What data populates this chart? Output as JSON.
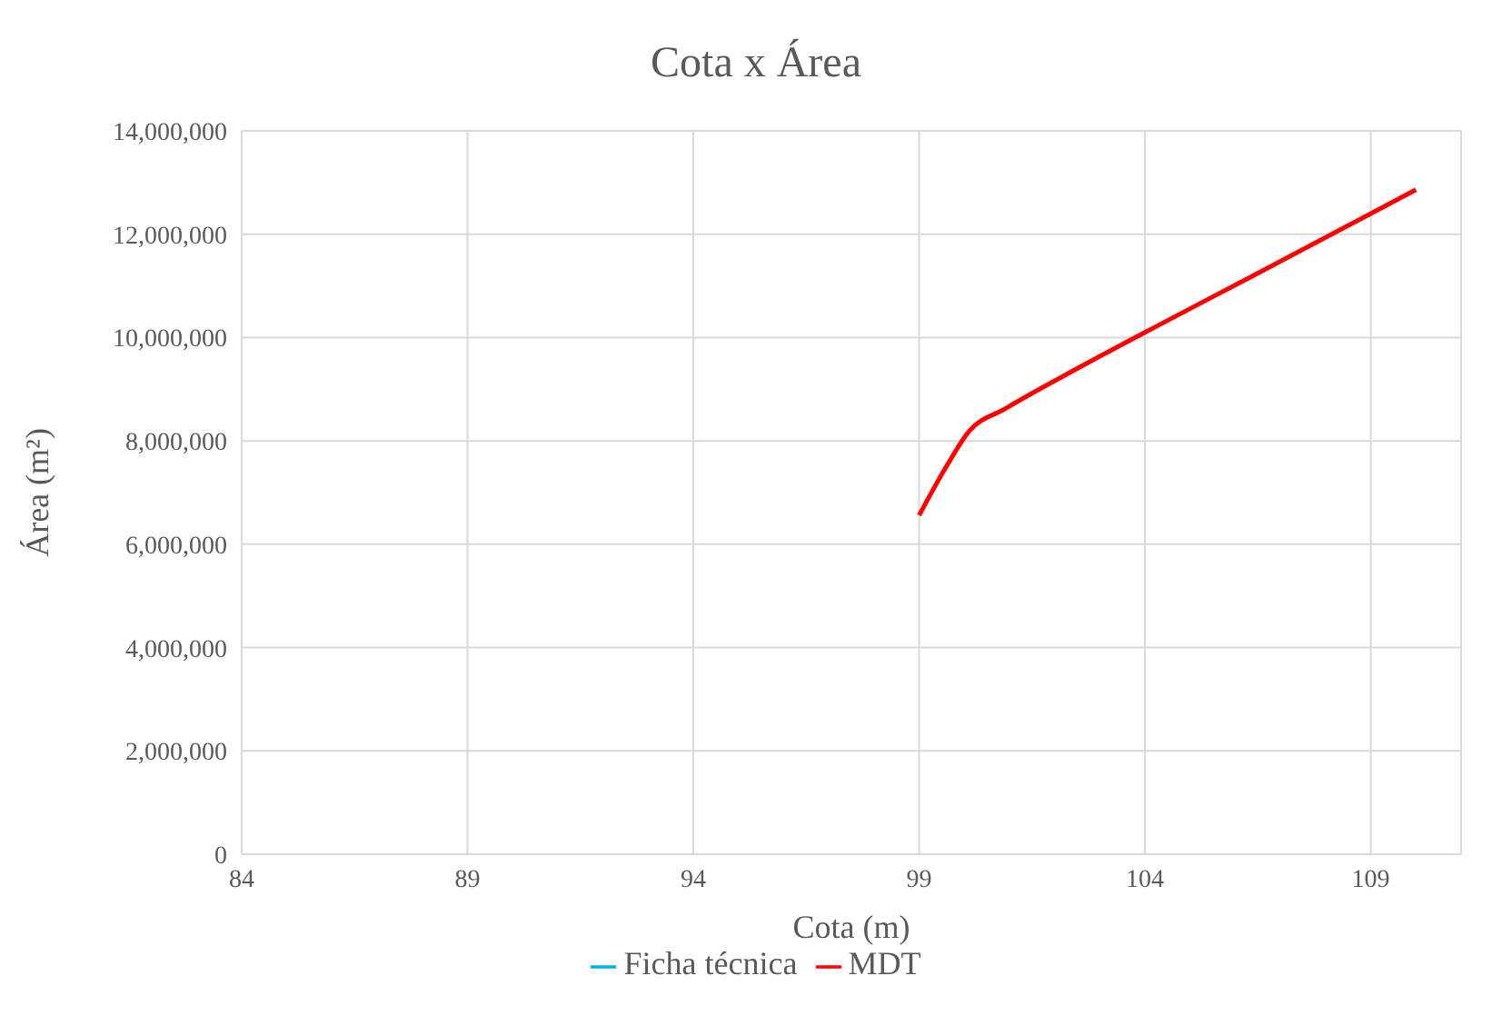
{
  "chart_data": {
    "type": "line",
    "title": "Cota x Área",
    "xlabel": "Cota (m)",
    "ylabel": "Área (m²)",
    "xlim": [
      84,
      111
    ],
    "xticks": [
      84,
      89,
      94,
      99,
      104,
      109
    ],
    "ylim": [
      0,
      14000000
    ],
    "yticks": [
      0,
      {
        "value": 2000000,
        "label": "2,000,000"
      },
      {
        "value": 4000000,
        "label": "4,000,000"
      },
      {
        "value": 6000000,
        "label": "6,000,000"
      },
      {
        "value": 8000000,
        "label": "8,000,000"
      },
      {
        "value": 10000000,
        "label": "10,000,000"
      },
      {
        "value": 12000000,
        "label": "12,000,000"
      },
      {
        "value": 14000000,
        "label": "14,000,000"
      }
    ],
    "grid": true,
    "legend": "bottom",
    "marker": "none",
    "line_style": "solid",
    "series": [
      {
        "name": "Ficha técnica",
        "color": "#00b0f0"
      },
      {
        "name": "MDT",
        "color": "#ff0000",
        "x": [
          99,
          99.6,
          100.1,
          100.9,
          102.5,
          104,
          106.4,
          110
        ],
        "values": [
          6560000,
          7500000,
          8180000,
          8620000,
          9400000,
          10100000,
          11200000,
          12860000
        ]
      }
    ]
  }
}
